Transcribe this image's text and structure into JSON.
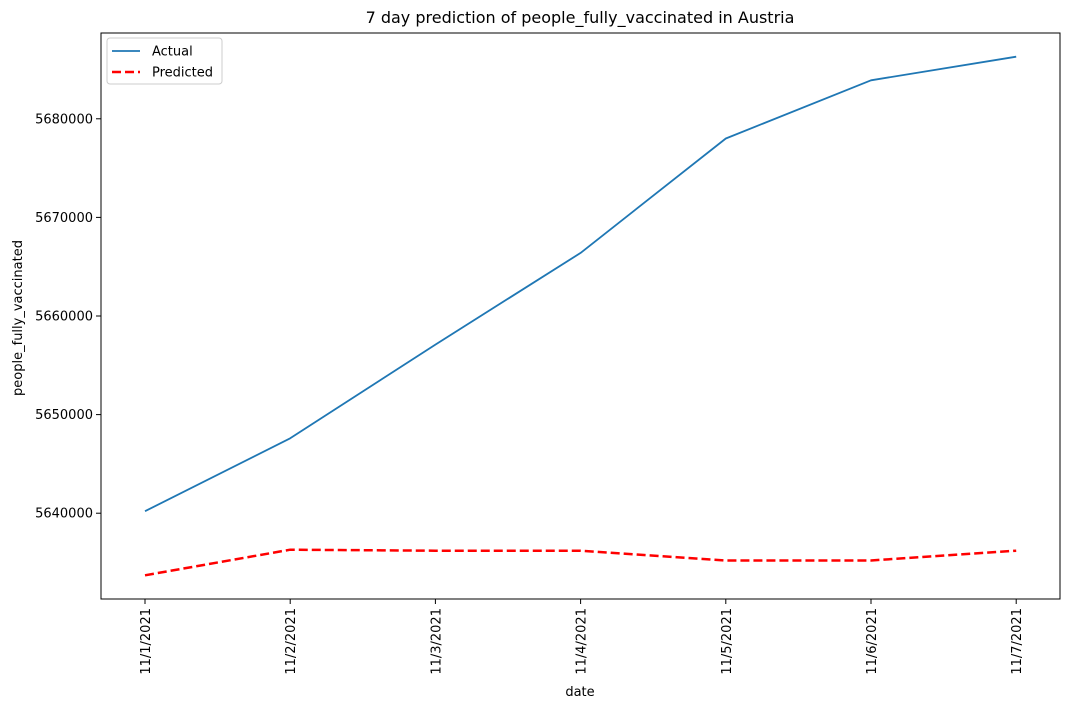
{
  "chart_data": {
    "type": "line",
    "title": "7 day prediction of people_fully_vaccinated in Austria",
    "xlabel": "date",
    "ylabel": "people_fully_vaccinated",
    "categories": [
      "11/1/2021",
      "11/2/2021",
      "11/3/2021",
      "11/4/2021",
      "11/5/2021",
      "11/6/2021",
      "11/7/2021"
    ],
    "y_ticks": [
      5640000,
      5650000,
      5660000,
      5670000,
      5680000
    ],
    "ylim": [
      5631300,
      5688700
    ],
    "grid": false,
    "legend_position": "top-left",
    "series": [
      {
        "name": "Actual",
        "color": "#1f77b4",
        "line_style": "solid",
        "values": [
          5640200,
          5647600,
          5657100,
          5666400,
          5678000,
          5683900,
          5686300
        ]
      },
      {
        "name": "Predicted",
        "color": "#ff0000",
        "line_style": "dashed",
        "values": [
          5633700,
          5636300,
          5636200,
          5636200,
          5635200,
          5635200,
          5636200
        ]
      }
    ]
  }
}
